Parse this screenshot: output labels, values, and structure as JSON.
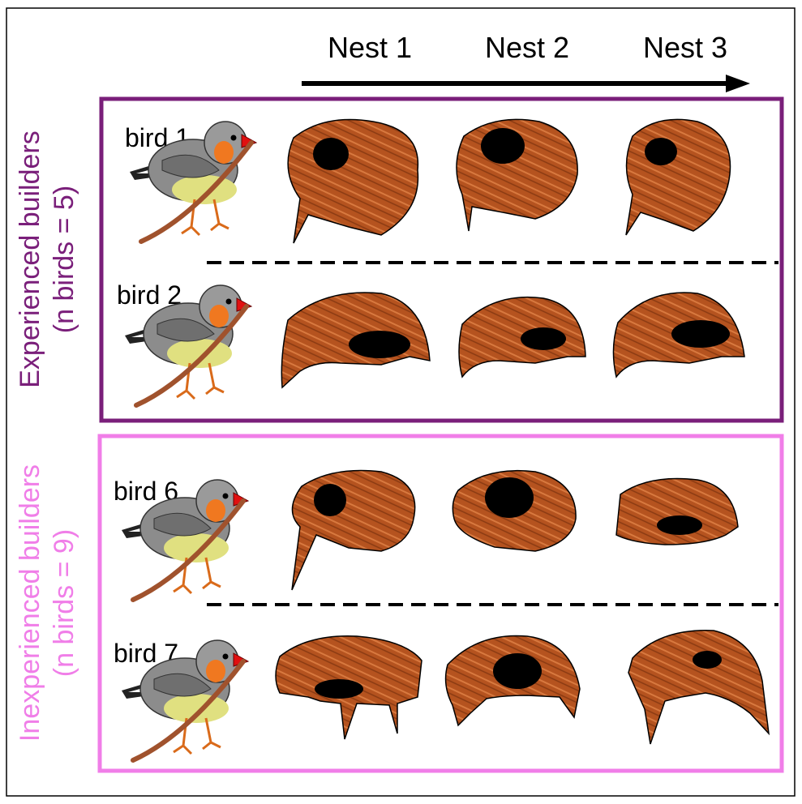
{
  "columns": [
    "Nest 1",
    "Nest 2",
    "Nest 3"
  ],
  "groups": [
    {
      "title": "Experienced builders",
      "subtitle": "(n birds = 5)",
      "color": "#7a1f7a",
      "birds": [
        "bird 1",
        "bird 2"
      ]
    },
    {
      "title": "Inexperienced builders",
      "subtitle": "(n birds = 9)",
      "color": "#f07ee8",
      "birds": [
        "bird 6",
        "bird 7"
      ]
    }
  ],
  "colors": {
    "nest": "#b5531f",
    "nest_dark": "#7a3210",
    "bird_body": "#8c8c8c",
    "bird_cheek": "#f07820",
    "bird_beak": "#e01010",
    "bird_belly": "#e0e080",
    "twig": "#a0522d"
  }
}
